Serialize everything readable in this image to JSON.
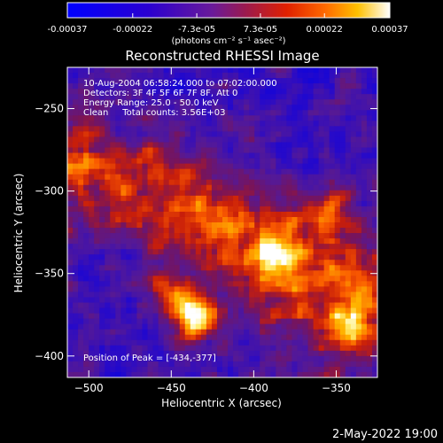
{
  "chart_data": {
    "type": "heatmap",
    "title": "Reconstructed RHESSI Image",
    "xlabel": "Heliocentric X (arcsec)",
    "ylabel": "Heliocentric Y (arcsec)",
    "xlim": [
      -513,
      -325
    ],
    "ylim": [
      -413,
      -225
    ],
    "x_ticks": [
      -500,
      -450,
      -400,
      -350
    ],
    "y_ticks": [
      -400,
      -350,
      -300,
      -250
    ],
    "colorbar": {
      "range": [
        -0.00037,
        0.00037
      ],
      "tick_values": [
        -0.00037,
        -0.00022,
        -7.3e-05,
        7.3e-05,
        0.00022,
        0.00037
      ],
      "tick_labels": [
        "-0.00037",
        "-0.00022",
        "-7.3e-05",
        "7.3e-05",
        "0.00022",
        "0.00037"
      ],
      "unit_label": "(photons cm⁻² s⁻¹ asec⁻²)",
      "colormap": "blue-purple-red-yellow-white"
    },
    "annotations": [
      "10-Aug-2004 06:58:24.000 to 07:02:00.000",
      "Detectors: 3F 4F 5F 6F 7F 8F, Att 0",
      "Energy Range: 25.0 - 50.0 keV",
      "Clean     Total counts: 3.56E+03"
    ],
    "peak_label": "Position of Peak = [-434,-377]",
    "peak": [
      -434,
      -377
    ],
    "emission_ridge": [
      [
        -500,
        -285
      ],
      [
        -460,
        -305
      ],
      [
        -420,
        -325
      ],
      [
        -380,
        -345
      ],
      [
        -340,
        -365
      ]
    ],
    "bright_sources": [
      {
        "x": -434,
        "y": -377,
        "intensity": 1.0
      },
      {
        "x": -450,
        "y": -365,
        "intensity": 0.65
      },
      {
        "x": -385,
        "y": -340,
        "intensity": 0.5
      },
      {
        "x": -355,
        "y": -312,
        "intensity": 0.5
      },
      {
        "x": -345,
        "y": -385,
        "intensity": 0.55
      }
    ]
  },
  "footer": {
    "timestamp": "2-May-2022 19:00"
  }
}
